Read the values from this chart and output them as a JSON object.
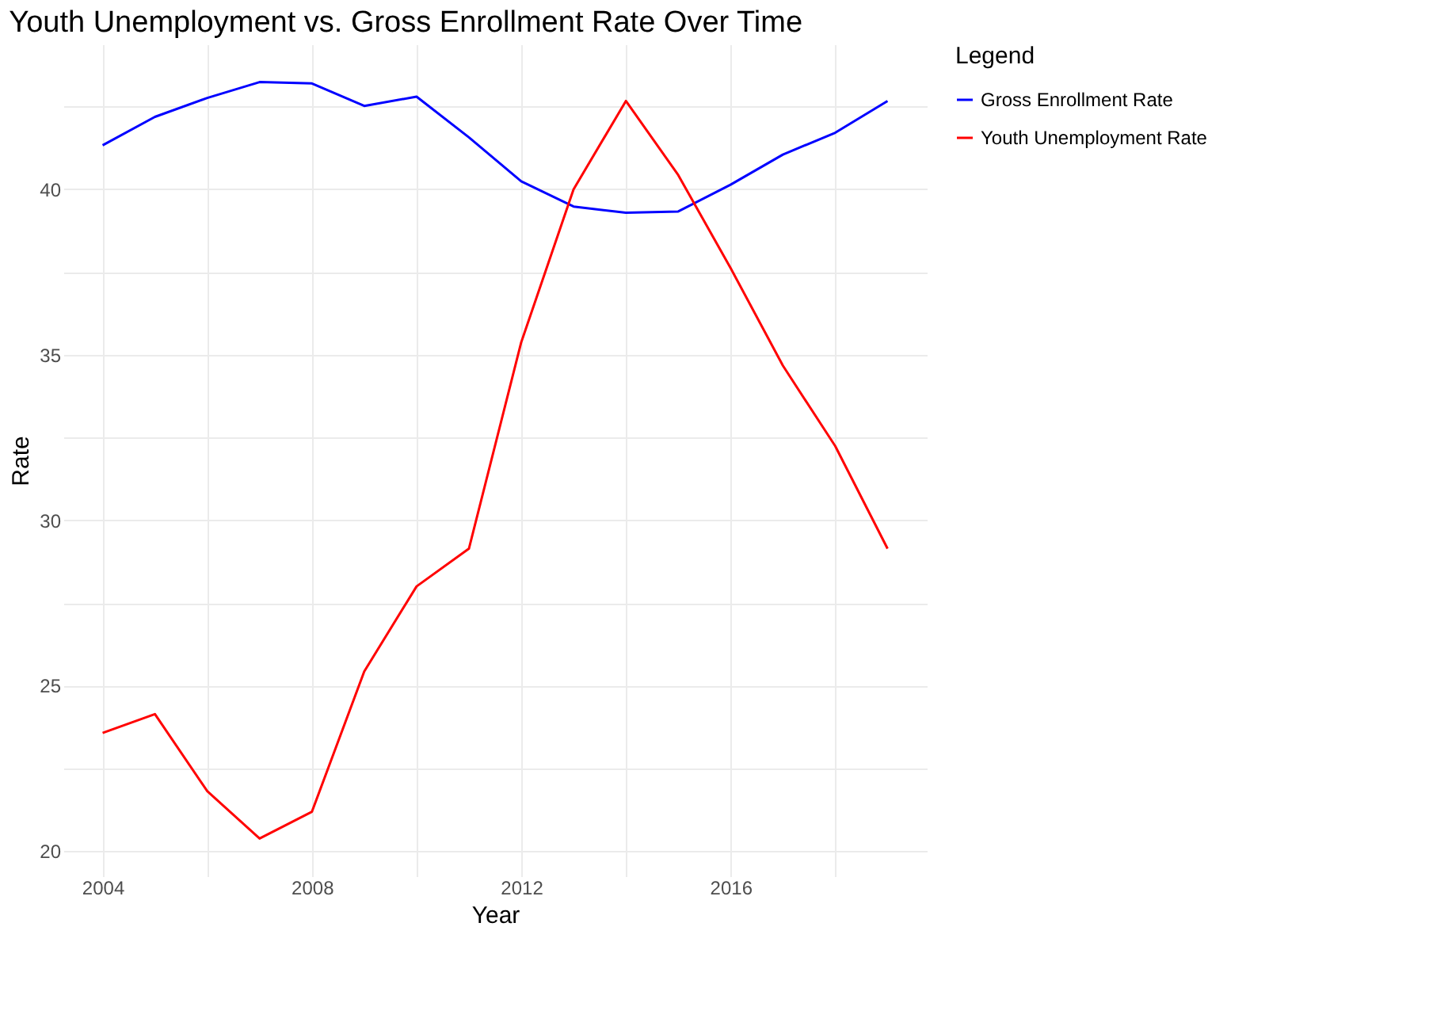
{
  "chart_data": {
    "type": "line",
    "title": "Youth Unemployment vs. Gross Enrollment Rate Over Time",
    "xlabel": "Year",
    "ylabel": "Rate",
    "legend_title": "Legend",
    "x": [
      2004,
      2005,
      2006,
      2007,
      2008,
      2009,
      2010,
      2011,
      2012,
      2013,
      2014,
      2015,
      2016,
      2017,
      2018,
      2019
    ],
    "series": [
      {
        "name": "Gross Enrollment Rate",
        "color": "#0000ff",
        "values": [
          41.33,
          42.19,
          42.76,
          43.24,
          43.2,
          42.52,
          42.8,
          41.57,
          40.24,
          39.48,
          39.29,
          39.33,
          40.14,
          41.05,
          41.71,
          42.67
        ]
      },
      {
        "name": "Youth Unemployment Rate",
        "color": "#ff0000",
        "values": [
          23.57,
          24.14,
          21.81,
          20.38,
          21.19,
          25.43,
          28.0,
          29.14,
          35.38,
          40.0,
          42.67,
          40.43,
          37.62,
          34.67,
          32.24,
          29.14
        ]
      }
    ],
    "xlim": [
      2003.25,
      2019.75
    ],
    "xticks": [
      2004,
      {
        "value": 2006,
        "label": null
      },
      2008,
      {
        "value": 2010,
        "label": null
      },
      2012,
      {
        "value": 2014,
        "label": null
      },
      2016,
      {
        "value": 2018,
        "label": null
      }
    ],
    "ylim": [
      19.24,
      44.38
    ],
    "yticks": [
      20,
      {
        "value": 22.5,
        "label": null
      },
      25,
      {
        "value": 27.5,
        "label": null
      },
      30,
      {
        "value": 32.5,
        "label": null
      },
      35,
      {
        "value": 37.5,
        "label": null
      },
      40,
      {
        "value": 42.5,
        "label": null
      }
    ],
    "grid": true,
    "legend": "right",
    "marker": "none",
    "line_style": "solid"
  }
}
